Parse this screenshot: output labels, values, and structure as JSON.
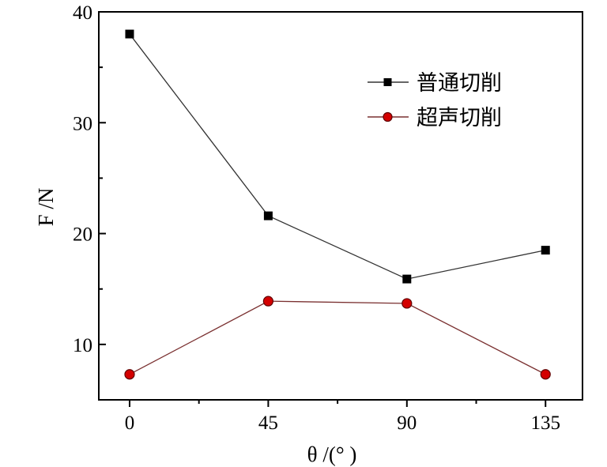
{
  "chart_data": {
    "type": "line",
    "x": [
      0,
      45,
      90,
      135
    ],
    "xlabel": "θ /(°  )",
    "ylabel": "F /N",
    "xticks": [
      "0",
      "45",
      "90",
      "135"
    ],
    "yticks": [
      "10",
      "20",
      "30",
      "40"
    ],
    "xlim": [
      -10,
      147
    ],
    "ylim": [
      5,
      40
    ],
    "grid": false,
    "legend_position": "top-right",
    "series": [
      {
        "name": "普通切削",
        "values": [
          38.0,
          21.6,
          15.9,
          18.5
        ],
        "color": "#333333",
        "marker": "square",
        "marker_color": "#000000"
      },
      {
        "name": "超声切削",
        "values": [
          7.3,
          13.9,
          13.7,
          7.3
        ],
        "color": "#7a3030",
        "marker": "circle",
        "marker_color": "#d40000"
      }
    ]
  }
}
